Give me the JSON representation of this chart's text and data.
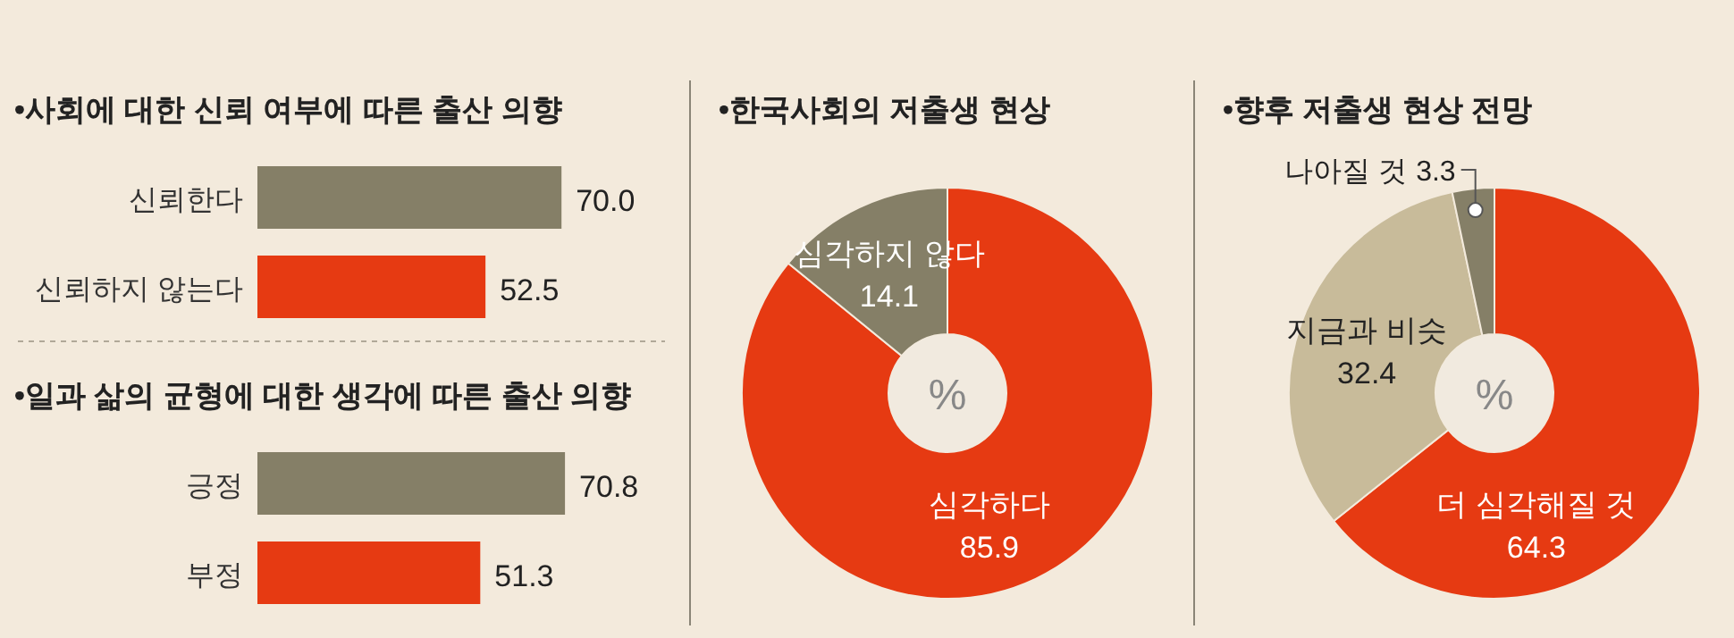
{
  "chart_data": [
    {
      "type": "bar",
      "orientation": "horizontal",
      "title": "•사회에 대한 신뢰 여부에 따른 출산 의향",
      "categories": [
        "신뢰한다",
        "신뢰하지 않는다"
      ],
      "values": [
        70.0,
        52.5
      ],
      "colors": [
        "#857f67",
        "#e63a12"
      ],
      "value_labels": [
        "70.0",
        "52.5"
      ]
    },
    {
      "type": "bar",
      "orientation": "horizontal",
      "title": "•일과 삶의 균형에 대한 생각에 따른 출산 의향",
      "categories": [
        "긍정",
        "부정"
      ],
      "values": [
        70.8,
        51.3
      ],
      "colors": [
        "#857f67",
        "#e63a12"
      ],
      "value_labels": [
        "70.8",
        "51.3"
      ]
    },
    {
      "type": "donut",
      "title": "•한국사회의 저출생 현상",
      "categories": [
        "심각하다",
        "심각하지 않다"
      ],
      "values": [
        85.9,
        14.1
      ],
      "colors": [
        "#e63a12",
        "#857f67"
      ],
      "data_labels": true,
      "annotations": [
        "%"
      ]
    },
    {
      "type": "donut",
      "title": "•향후 저출생 현상 전망",
      "categories": [
        "더 심각해질 것",
        "지금과 비슷",
        "나아질 것"
      ],
      "values": [
        64.3,
        32.4,
        3.3
      ],
      "colors": [
        "#e63a12",
        "#c8bb9a",
        "#857f67"
      ],
      "data_labels": true,
      "annotations": [
        "%"
      ]
    }
  ]
}
